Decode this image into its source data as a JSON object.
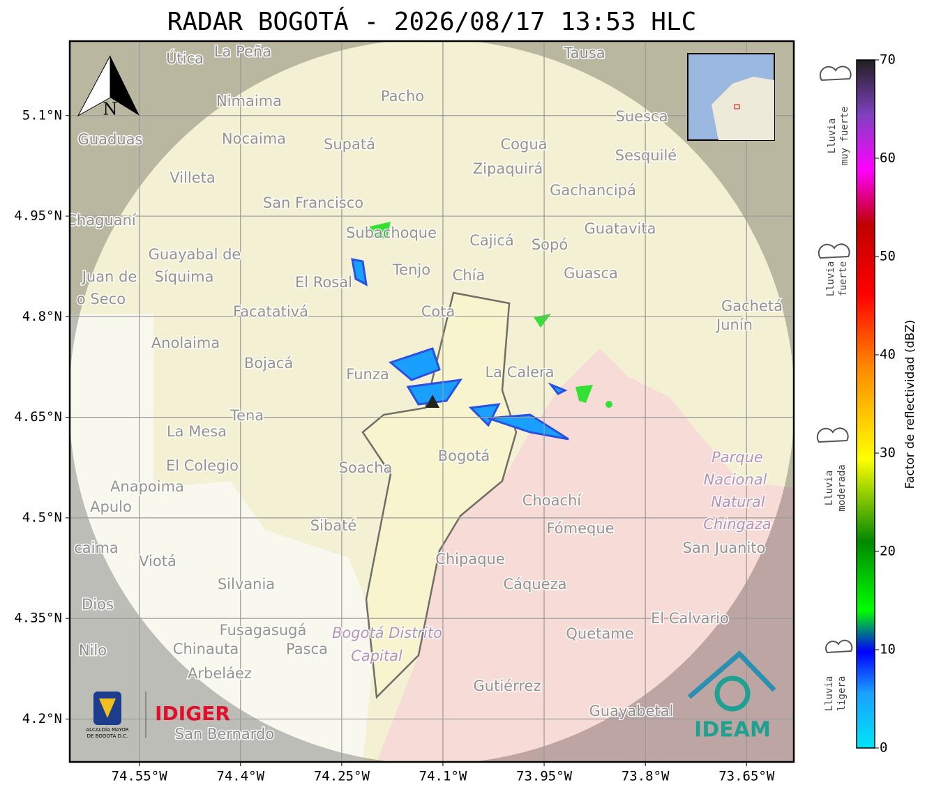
{
  "header": {
    "title": "RADAR BOGOTÁ - 2026/08/17 13:53 HLC"
  },
  "map": {
    "xlim": [
      -74.653,
      -73.58
    ],
    "ylim": [
      4.136,
      5.211
    ],
    "xticks": [
      {
        "value": -74.55,
        "label": "74.55°W"
      },
      {
        "value": -74.4,
        "label": "74.4°W"
      },
      {
        "value": -74.25,
        "label": "74.25°W"
      },
      {
        "value": -74.1,
        "label": "74.1°W"
      },
      {
        "value": -73.95,
        "label": "73.95°W"
      },
      {
        "value": -73.8,
        "label": "73.8°W"
      },
      {
        "value": -73.65,
        "label": "73.65°W"
      }
    ],
    "yticks": [
      {
        "value": 5.1,
        "label": "5.1°N"
      },
      {
        "value": 4.95,
        "label": "4.95°N"
      },
      {
        "value": 4.8,
        "label": "4.8°N"
      },
      {
        "value": 4.65,
        "label": "4.65°N"
      },
      {
        "value": 4.5,
        "label": "4.5°N"
      },
      {
        "value": 4.35,
        "label": "4.35°N"
      },
      {
        "value": 4.2,
        "label": "4.2°N"
      }
    ],
    "north": "N",
    "places": [
      "La Peña",
      "Útica",
      "Tausa",
      "Pacho",
      "Nimaima",
      "Guaduas",
      "Nocaima",
      "Supatá",
      "Cogua",
      "Suesca",
      "Sesquilé",
      "Zipaquirá",
      "Villeta",
      "Gachancipá",
      "San Francisco",
      "Chaguaní",
      "Subachoque",
      "Cajicá",
      "Sopó",
      "Guatavita",
      "Guayabal de",
      "Síquima",
      "Tenjo",
      "El Rosal",
      "Chía",
      "Guasca",
      "Juan de",
      "o Seco",
      "Facatativá",
      "Cota",
      "Gachetá",
      "Junín",
      "Anolaima",
      "Bojacá",
      "Funza",
      "La Calera",
      "Tena",
      "La Mesa",
      "El Colegio",
      "Soacha",
      "Bogotá",
      "Parque",
      "Nacional",
      "Natural",
      "Chingaza",
      "Anapoima",
      "Apulo",
      "Choachí",
      "Fómeque",
      "San Juanito",
      "Sibaté",
      "caima",
      "Viotá",
      "Chipaque",
      "Silvania",
      "Cáqueza",
      "Dios",
      "El Calvario",
      "Fusagasugá",
      "Bogotá Distrito",
      "Capital",
      "Quetame",
      "Nilo",
      "Chinauta",
      "Pasca",
      "Arbeláez",
      "Gutiérrez",
      "Guayabetal",
      "San Bernardo"
    ],
    "logos": {
      "idiger": "IDIGER",
      "ideam": "IDEAM",
      "alcaldia": [
        "ALCALDÍA MAYOR",
        "DE BOGOTÁ D.C."
      ]
    }
  },
  "colorbar": {
    "lim": [
      0,
      70
    ],
    "ticks": [
      0,
      10,
      20,
      30,
      40,
      50,
      60,
      70
    ],
    "label": "Factor de reflectividad (dBZ)"
  },
  "rain_levels": [
    [
      "Lluvia",
      "muy fuerte"
    ],
    [
      "Lluvia",
      "fuerte"
    ],
    [
      "Lluvia",
      "moderada"
    ],
    [
      "Lluvia",
      "ligera"
    ]
  ]
}
